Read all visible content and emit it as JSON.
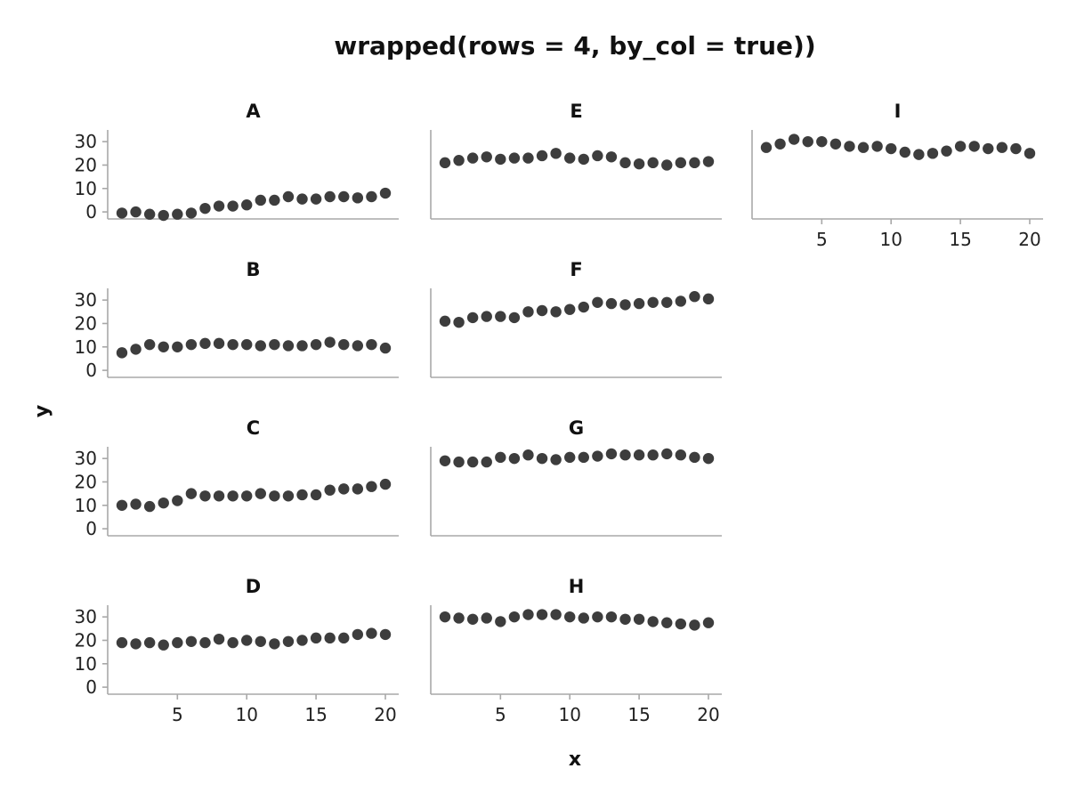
{
  "chart_data": {
    "type": "scatter",
    "title": "wrapped(rows = 4, by_col = true))",
    "xlabel": "x",
    "ylabel": "y",
    "xlim": [
      0,
      21
    ],
    "ylim": [
      -3,
      35
    ],
    "x_ticks": [
      5,
      10,
      15,
      20
    ],
    "y_ticks": [
      0,
      10,
      20,
      30
    ],
    "grid": false,
    "legend": "none",
    "layout": {
      "rows": 4,
      "by_col": true
    },
    "colors": {
      "points": "#3d3d3d",
      "axis": "#a8a8a8",
      "text": "#111111"
    },
    "panels": [
      {
        "name": "A",
        "x": [
          1,
          2,
          3,
          4,
          5,
          6,
          7,
          8,
          9,
          10,
          11,
          12,
          13,
          14,
          15,
          16,
          17,
          18,
          19,
          20
        ],
        "y": [
          -0.5,
          0,
          -1,
          -1.5,
          -1,
          -0.5,
          1.5,
          2.5,
          2.5,
          3,
          5,
          5,
          6.5,
          5.5,
          5.5,
          6.5,
          6.5,
          6,
          6.5,
          8
        ]
      },
      {
        "name": "B",
        "x": [
          1,
          2,
          3,
          4,
          5,
          6,
          7,
          8,
          9,
          10,
          11,
          12,
          13,
          14,
          15,
          16,
          17,
          18,
          19,
          20
        ],
        "y": [
          7.5,
          9,
          11,
          10,
          10,
          11,
          11.5,
          11.5,
          11,
          11,
          10.5,
          11,
          10.5,
          10.5,
          11,
          12,
          11,
          10.5,
          11,
          9.5
        ]
      },
      {
        "name": "C",
        "x": [
          1,
          2,
          3,
          4,
          5,
          6,
          7,
          8,
          9,
          10,
          11,
          12,
          13,
          14,
          15,
          16,
          17,
          18,
          19,
          20
        ],
        "y": [
          10,
          10.5,
          9.5,
          11,
          12,
          15,
          14,
          14,
          14,
          14,
          15,
          14,
          14,
          14.5,
          14.5,
          16.5,
          17,
          17,
          18,
          19
        ]
      },
      {
        "name": "D",
        "x": [
          1,
          2,
          3,
          4,
          5,
          6,
          7,
          8,
          9,
          10,
          11,
          12,
          13,
          14,
          15,
          16,
          17,
          18,
          19,
          20
        ],
        "y": [
          19,
          18.5,
          19,
          18,
          19,
          19.5,
          19,
          20.5,
          19,
          20,
          19.5,
          18.5,
          19.5,
          20,
          21,
          21,
          21,
          22.5,
          23,
          22.5
        ]
      },
      {
        "name": "E",
        "x": [
          1,
          2,
          3,
          4,
          5,
          6,
          7,
          8,
          9,
          10,
          11,
          12,
          13,
          14,
          15,
          16,
          17,
          18,
          19,
          20
        ],
        "y": [
          21,
          22,
          23,
          23.5,
          22.5,
          23,
          23,
          24,
          25,
          23,
          22.5,
          24,
          23.5,
          21,
          20.5,
          21,
          20,
          21,
          21,
          21.5
        ]
      },
      {
        "name": "F",
        "x": [
          1,
          2,
          3,
          4,
          5,
          6,
          7,
          8,
          9,
          10,
          11,
          12,
          13,
          14,
          15,
          16,
          17,
          18,
          19,
          20
        ],
        "y": [
          21,
          20.5,
          22.5,
          23,
          23,
          22.5,
          25,
          25.5,
          25,
          26,
          27,
          29,
          28.5,
          28,
          28.5,
          29,
          29,
          29.5,
          31.5,
          30.5
        ]
      },
      {
        "name": "G",
        "x": [
          1,
          2,
          3,
          4,
          5,
          6,
          7,
          8,
          9,
          10,
          11,
          12,
          13,
          14,
          15,
          16,
          17,
          18,
          19,
          20
        ],
        "y": [
          29,
          28.5,
          28.5,
          28.5,
          30.5,
          30,
          31.5,
          30,
          29.5,
          30.5,
          30.5,
          31,
          32,
          31.5,
          31.5,
          31.5,
          32,
          31.5,
          30.5,
          30
        ]
      },
      {
        "name": "H",
        "x": [
          1,
          2,
          3,
          4,
          5,
          6,
          7,
          8,
          9,
          10,
          11,
          12,
          13,
          14,
          15,
          16,
          17,
          18,
          19,
          20
        ],
        "y": [
          30,
          29.5,
          29,
          29.5,
          28,
          30,
          31,
          31,
          31,
          30,
          29.5,
          30,
          30,
          29,
          29,
          28,
          27.5,
          27,
          26.5,
          27.5
        ]
      },
      {
        "name": "I",
        "x": [
          1,
          2,
          3,
          4,
          5,
          6,
          7,
          8,
          9,
          10,
          11,
          12,
          13,
          14,
          15,
          16,
          17,
          18,
          19,
          20
        ],
        "y": [
          27.5,
          29,
          31,
          30,
          30,
          29,
          28,
          27.5,
          28,
          27,
          25.5,
          24.5,
          25,
          26,
          28,
          28,
          27,
          27.5,
          27,
          25
        ]
      }
    ]
  }
}
